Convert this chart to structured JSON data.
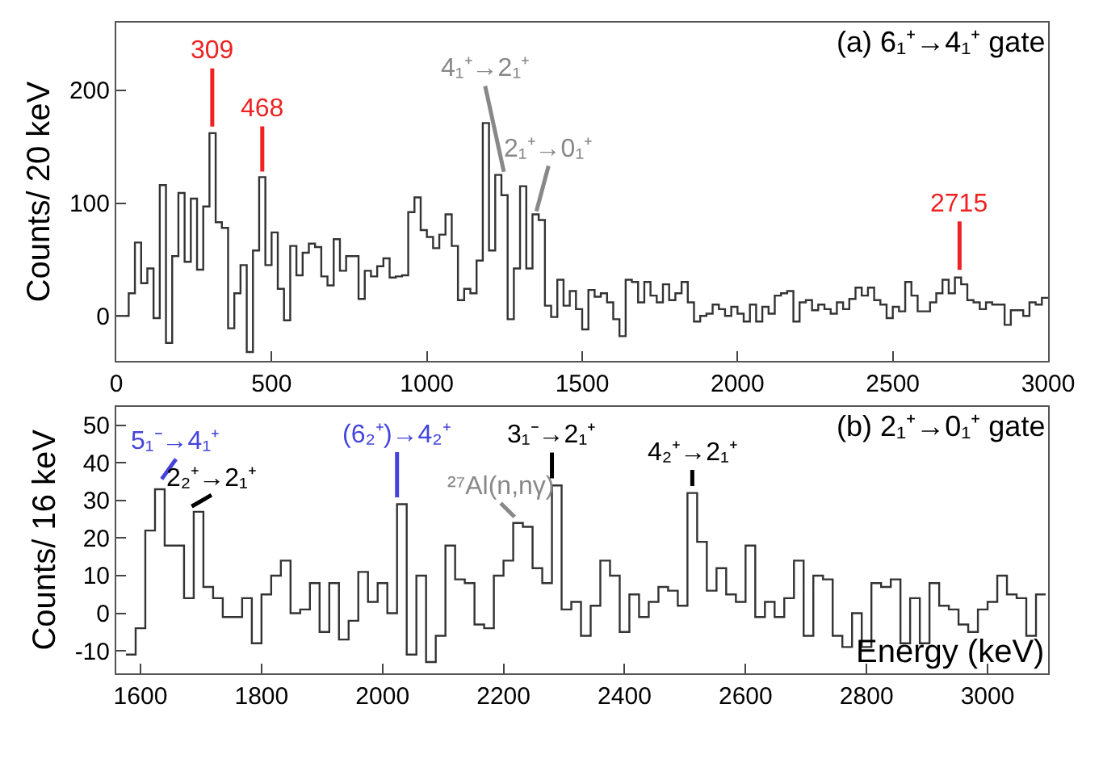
{
  "chart_data": [
    {
      "type": "histogram",
      "ylabel": "Counts/ 20 keV",
      "color": "#333333",
      "bins": [
        0,
        20,
        40,
        60,
        80,
        100,
        120,
        140,
        160,
        180,
        200,
        220,
        240,
        260,
        280,
        300,
        320,
        340,
        360,
        380,
        400,
        420,
        440,
        460,
        480,
        500,
        520,
        540,
        560,
        580,
        600,
        620,
        640,
        660,
        680,
        700,
        720,
        740,
        760,
        780,
        800,
        820,
        840,
        860,
        880,
        900,
        920,
        940,
        960,
        980,
        1000,
        1020,
        1040,
        1060,
        1080,
        1100,
        1120,
        1140,
        1160,
        1180,
        1200,
        1220,
        1240,
        1260,
        1280,
        1300,
        1320,
        1340,
        1360,
        1380,
        1400,
        1420,
        1440,
        1460,
        1480,
        1500,
        1520,
        1540,
        1560,
        1580,
        1600,
        1620,
        1640,
        1660,
        1680,
        1700,
        1720,
        1740,
        1760,
        1780,
        1800,
        1820,
        1840,
        1860,
        1880,
        1900,
        1920,
        1940,
        1960,
        1980,
        2000,
        2020,
        2040,
        2060,
        2080,
        2100,
        2120,
        2140,
        2160,
        2180,
        2200,
        2220,
        2240,
        2260,
        2280,
        2300,
        2320,
        2340,
        2360,
        2380,
        2400,
        2420,
        2440,
        2460,
        2480,
        2500,
        2520,
        2540,
        2560,
        2580,
        2600,
        2620,
        2640,
        2660,
        2680,
        2700,
        2720,
        2740,
        2760,
        2780,
        2800,
        2820,
        2840,
        2860,
        2880,
        2900,
        2920,
        2940,
        2960,
        2980,
        3000
      ],
      "values": [
        0,
        0,
        20,
        65,
        29,
        42,
        -2,
        116,
        -24,
        53,
        109,
        48,
        104,
        41,
        97,
        162,
        83,
        78,
        -11,
        20,
        45,
        -32,
        58,
        123,
        45,
        74,
        24,
        -4,
        62,
        36,
        56,
        64,
        61,
        35,
        27,
        68,
        40,
        53,
        53,
        15,
        40,
        35,
        44,
        51,
        34,
        35,
        36,
        92,
        105,
        76,
        70,
        60,
        72,
        90,
        62,
        14,
        24,
        20,
        49,
        171,
        58,
        125,
        107,
        -3,
        42,
        115,
        42,
        90,
        85,
        9,
        -1,
        32,
        9,
        22,
        6,
        -12,
        23,
        17,
        20,
        12,
        -3,
        -18,
        32,
        30,
        12,
        30,
        18,
        12,
        28,
        14,
        20,
        30,
        12,
        -5,
        0,
        2,
        10,
        6,
        0,
        8,
        2,
        -5,
        10,
        -5,
        8,
        2,
        18,
        20,
        22,
        -5,
        12,
        14,
        5,
        10,
        6,
        2,
        12,
        6,
        15,
        25,
        18,
        25,
        14,
        10,
        -2,
        8,
        4,
        30,
        18,
        4,
        4,
        12,
        20,
        32,
        20,
        34,
        28,
        14,
        12,
        6,
        12,
        10,
        10,
        -8,
        5,
        5,
        0,
        12,
        10,
        16
      ],
      "xlim": [
        0,
        3000
      ],
      "ylim": [
        -40,
        260
      ],
      "xticks": [
        0,
        500,
        1000,
        1500,
        2000,
        2500,
        3000
      ],
      "yticks": [
        0,
        100,
        200
      ],
      "annotations": [
        {
          "text": "309",
          "x": 309,
          "y": 165
        },
        {
          "text": "468",
          "x": 470,
          "y": 125
        },
        {
          "text": "4₁⁺→2₁⁺",
          "x": 1250,
          "y": 125
        },
        {
          "text": "2₁⁺→0₁⁺",
          "x": 1350,
          "y": 90
        },
        {
          "text": "2715",
          "x": 2715,
          "y": 38
        },
        "(a) 6₁⁺→4₁⁺ gate"
      ]
    },
    {
      "type": "histogram",
      "xlabel": "Energy (keV)",
      "ylabel": "Counts/ 16 keV",
      "color": "#333333",
      "bins": [
        1576,
        1592,
        1608,
        1624,
        1640,
        1656,
        1672,
        1688,
        1704,
        1720,
        1736,
        1752,
        1768,
        1784,
        1800,
        1816,
        1832,
        1848,
        1864,
        1880,
        1896,
        1912,
        1928,
        1944,
        1960,
        1976,
        1992,
        2008,
        2024,
        2040,
        2056,
        2072,
        2088,
        2104,
        2120,
        2136,
        2152,
        2168,
        2184,
        2200,
        2216,
        2232,
        2248,
        2264,
        2280,
        2296,
        2312,
        2328,
        2344,
        2360,
        2376,
        2392,
        2408,
        2424,
        2440,
        2456,
        2472,
        2488,
        2504,
        2520,
        2536,
        2552,
        2568,
        2584,
        2600,
        2616,
        2632,
        2648,
        2664,
        2680,
        2696,
        2712,
        2728,
        2744,
        2760,
        2776,
        2792,
        2808,
        2824,
        2840,
        2856,
        2872,
        2888,
        2904,
        2920,
        2936,
        2952,
        2968,
        2984,
        3000,
        3016,
        3032,
        3048,
        3064,
        3080,
        3096
      ],
      "values": [
        -11,
        -4,
        22,
        33,
        18,
        18,
        4,
        27,
        7,
        4,
        -1,
        -1,
        4,
        -8,
        5,
        10,
        14,
        0,
        1,
        8,
        -5,
        8,
        -7,
        -2,
        11,
        3,
        8,
        0,
        29,
        -11,
        10,
        -13,
        -6,
        18,
        9,
        8,
        -3,
        -4,
        10,
        14,
        24,
        23,
        12,
        8,
        34,
        1,
        3,
        -6,
        2,
        14,
        10,
        -5,
        5,
        -1,
        3,
        7,
        6,
        2,
        32,
        19,
        6,
        12,
        5,
        3,
        18,
        -1,
        3,
        -1,
        4,
        14,
        -6,
        10,
        9,
        -6,
        -9,
        0,
        -9,
        8,
        7,
        9,
        -8,
        4,
        -8,
        8,
        2,
        1,
        -3,
        -5,
        1,
        3,
        10,
        5,
        4,
        -6,
        5
      ],
      "xlim": [
        1560,
        3100
      ],
      "ylim": [
        -16,
        55
      ],
      "xticks": [
        1600,
        1800,
        2000,
        2200,
        2400,
        2600,
        2800,
        3000
      ],
      "yticks": [
        -10,
        0,
        10,
        20,
        30,
        40,
        50
      ],
      "annotations": [
        {
          "text": "5₁⁻→4₁⁺",
          "x": 1632,
          "y": 35
        },
        {
          "text": "2₂⁺→2₁⁺",
          "x": 1680,
          "y": 28
        },
        {
          "text": "(6₂⁺)→4₂⁺",
          "x": 2024,
          "y": 30
        },
        {
          "text": "²⁷Al(n,nγ)",
          "x": 2222,
          "y": 25
        },
        {
          "text": "3₁⁻→2₁⁺",
          "x": 2280,
          "y": 35
        },
        {
          "text": "4₂⁺→2₁⁺",
          "x": 2512,
          "y": 33
        },
        "(b) 2₁⁺→0₁⁺ gate"
      ]
    }
  ]
}
